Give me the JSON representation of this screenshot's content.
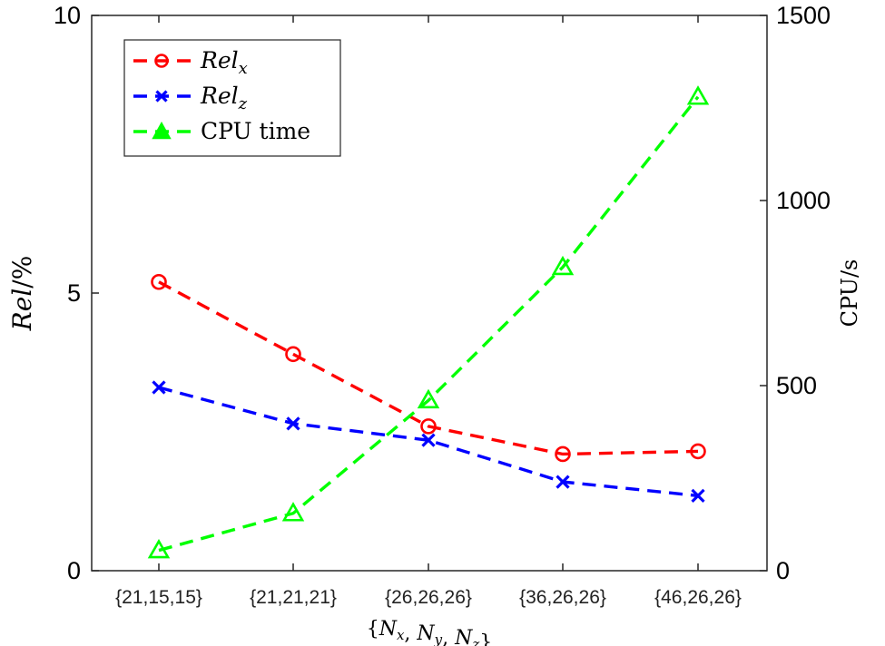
{
  "chart_data": {
    "type": "line",
    "categories": [
      "{21,15,15}",
      "{21,21,21}",
      "{26,26,26}",
      "{36,26,26}",
      "{46,26,26}"
    ],
    "xlabel": "{N_x, N_y, N_z}",
    "ylabel_left": "Rel/%",
    "ylabel_right": "CPU/s",
    "ylim_left": [
      0,
      10
    ],
    "ylim_right": [
      0,
      1500
    ],
    "yticks_left": [
      "0",
      "5",
      "10"
    ],
    "yticks_right": [
      "0",
      "500",
      "1000",
      "1500"
    ],
    "grid": false,
    "legend_position": "top-left",
    "series": [
      {
        "name": "Rel_x",
        "axis": "left",
        "color": "#ff0000",
        "marker": "circle",
        "values": [
          5.2,
          3.9,
          2.6,
          2.1,
          2.15
        ]
      },
      {
        "name": "Rel_z",
        "axis": "left",
        "color": "#0000ff",
        "marker": "x",
        "values": [
          3.3,
          2.65,
          2.35,
          1.6,
          1.35
        ]
      },
      {
        "name": "CPU time",
        "axis": "right",
        "color": "#00ff00",
        "marker": "triangle",
        "values": [
          55,
          155,
          460,
          820,
          1280
        ]
      }
    ]
  }
}
